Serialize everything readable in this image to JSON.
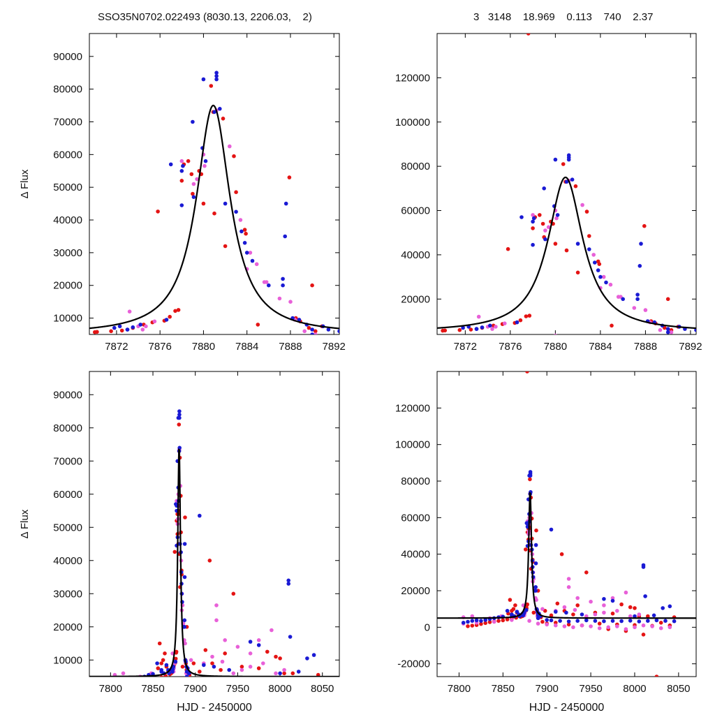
{
  "figure": {
    "title_left": "SSO35N0702.022493 (8030.13, 2206.03,    2)",
    "title_right": "3   3148    18.969    0.113    740    2.37",
    "ylabel": "Δ Flux",
    "xlabel": "HJD - 2450000",
    "colors": {
      "red": "#e41414",
      "blue": "#1a1ad4",
      "pink": "#e860d8",
      "fit": "#000000"
    }
  },
  "chart_data": [
    {
      "type": "scatter",
      "panel": "top-left",
      "xlim": [
        7869.5,
        7892.5
      ],
      "ylim": [
        5000,
        97000
      ],
      "xticks": [
        7872,
        7876,
        7880,
        7884,
        7888,
        7892
      ],
      "yticks": [
        10000,
        20000,
        30000,
        40000,
        50000,
        60000,
        70000,
        80000,
        90000
      ],
      "ylabel": "Δ Flux",
      "xlabel": ""
    },
    {
      "type": "scatter",
      "panel": "top-right",
      "xlim": [
        7869.5,
        7892.5
      ],
      "ylim": [
        4000,
        140000
      ],
      "xticks": [
        7872,
        7876,
        7880,
        7884,
        7888,
        7892
      ],
      "yticks": [
        20000,
        40000,
        60000,
        80000,
        100000,
        120000
      ],
      "ylabel": "",
      "xlabel": ""
    },
    {
      "type": "scatter",
      "panel": "bottom-left",
      "xlim": [
        7775,
        8070
      ],
      "ylim": [
        5000,
        97000
      ],
      "xticks": [
        7800,
        7850,
        7900,
        7950,
        8000,
        8050
      ],
      "yticks": [
        10000,
        20000,
        30000,
        40000,
        50000,
        60000,
        70000,
        80000,
        90000
      ],
      "ylabel": "Δ Flux",
      "xlabel": "HJD - 2450000"
    },
    {
      "type": "scatter",
      "panel": "bottom-right",
      "xlim": [
        7775,
        8070
      ],
      "ylim": [
        -27000,
        140000
      ],
      "xticks": [
        7800,
        7850,
        7900,
        7950,
        8000,
        8050
      ],
      "yticks": [
        -20000,
        0,
        20000,
        40000,
        60000,
        80000,
        100000,
        120000
      ],
      "ylabel": "",
      "xlabel": "HJD - 2450000"
    }
  ],
  "series": {
    "fit": {
      "name": "",
      "model": "lorentzian",
      "peak_x": 7880.9,
      "peak_y": 75000,
      "baseline": 5000,
      "half_width": 1.9
    },
    "red": [
      [
        7870.2,
        5800
      ],
      [
        7871.5,
        6000
      ],
      [
        7872.5,
        6200
      ],
      [
        7873.5,
        7000
      ],
      [
        7874.5,
        8000
      ],
      [
        7875.3,
        8700
      ],
      [
        7875.8,
        42600
      ],
      [
        7876.4,
        9200
      ],
      [
        7876.9,
        10400
      ],
      [
        7877.4,
        12200
      ],
      [
        7877.7,
        12500
      ],
      [
        7878.2,
        57000
      ],
      [
        7878.6,
        58000
      ],
      [
        7878.9,
        54000
      ],
      [
        7879.6,
        55000
      ],
      [
        7879.8,
        54000
      ],
      [
        7880.7,
        81000
      ],
      [
        7880.9,
        73000
      ],
      [
        7881.8,
        71000
      ],
      [
        7882.8,
        59500
      ],
      [
        7883.0,
        48500
      ],
      [
        7883.8,
        37000
      ],
      [
        7883.9,
        35800
      ],
      [
        7887.9,
        53000
      ],
      [
        7888.5,
        10000
      ],
      [
        7888.9,
        9000
      ],
      [
        7889.7,
        7000
      ],
      [
        7890.3,
        6000
      ],
      [
        7890.9,
        7500
      ],
      [
        7893.2,
        5500
      ],
      [
        7877.6,
        140000
      ],
      [
        7849,
        5800
      ],
      [
        7856,
        7500
      ],
      [
        7858,
        15000
      ],
      [
        7860,
        9000
      ],
      [
        7862,
        10000
      ],
      [
        7864,
        12000
      ],
      [
        7866,
        8000
      ],
      [
        7868,
        6500
      ],
      [
        7878,
        52000
      ],
      [
        7879,
        48000
      ],
      [
        7880,
        45000
      ],
      [
        7881,
        42000
      ],
      [
        7882,
        32000
      ],
      [
        7885,
        8000
      ],
      [
        7890,
        20000
      ],
      [
        7898,
        9000
      ],
      [
        7905,
        6500
      ],
      [
        7912,
        13000
      ],
      [
        7917,
        40000
      ],
      [
        7920,
        9000
      ],
      [
        7930,
        7000
      ],
      [
        7935,
        12000
      ],
      [
        7945,
        30000
      ],
      [
        7955,
        8000
      ],
      [
        7975,
        7500
      ],
      [
        7985,
        12500
      ],
      [
        7995,
        11000
      ],
      [
        8000,
        10500
      ],
      [
        8005,
        6000
      ],
      [
        8015,
        6000
      ],
      [
        8025,
        -27000
      ],
      [
        8045,
        5500
      ],
      [
        7810,
        600
      ],
      [
        7815,
        900
      ],
      [
        7820,
        1200
      ],
      [
        7825,
        1800
      ],
      [
        7830,
        2300
      ],
      [
        7835,
        2800
      ],
      [
        7840,
        3200
      ],
      [
        7845,
        3500
      ],
      [
        7850,
        3800
      ],
      [
        7855,
        4300
      ],
      [
        7860,
        4800
      ],
      [
        7865,
        5200
      ],
      [
        7870,
        5700
      ],
      [
        7895,
        3000
      ],
      [
        7900,
        2000
      ],
      [
        7910,
        2500
      ],
      [
        7925,
        1500
      ],
      [
        7940,
        1000
      ],
      [
        7960,
        2000
      ],
      [
        7980,
        1500
      ],
      [
        8000,
        1200
      ],
      [
        8020,
        800
      ],
      [
        8040,
        1000
      ],
      [
        8030,
        2500
      ],
      [
        8010,
        -4000
      ],
      [
        7990,
        -2000
      ],
      [
        7970,
        -1000
      ]
    ],
    "blue": [
      [
        7871.8,
        7000
      ],
      [
        7872.3,
        7500
      ],
      [
        7873.0,
        6500
      ],
      [
        7873.5,
        7200
      ],
      [
        7874.2,
        8000
      ],
      [
        7876.6,
        9500
      ],
      [
        7878.0,
        44500
      ],
      [
        7878.1,
        56500
      ],
      [
        7879.1,
        47000
      ],
      [
        7879.9,
        62000
      ],
      [
        7880.2,
        58000
      ],
      [
        7881.2,
        85000
      ],
      [
        7881.2,
        84000
      ],
      [
        7881.2,
        83000
      ],
      [
        7881.5,
        74000
      ],
      [
        7883.0,
        42500
      ],
      [
        7883.5,
        36500
      ],
      [
        7883.8,
        33000
      ],
      [
        7884.5,
        27500
      ],
      [
        7887.3,
        20000
      ],
      [
        7887.3,
        22000
      ],
      [
        7887.5,
        35000
      ],
      [
        7887.6,
        45000
      ],
      [
        7888.2,
        10000
      ],
      [
        7888.8,
        9500
      ],
      [
        7889.5,
        8000
      ],
      [
        7890.0,
        6500
      ],
      [
        7891.0,
        7500
      ],
      [
        7891.5,
        6500
      ],
      [
        7892.5,
        6000
      ],
      [
        7855,
        9000
      ],
      [
        7860,
        7000
      ],
      [
        7863,
        6000
      ],
      [
        7866,
        8500
      ],
      [
        7869,
        6000
      ],
      [
        7873,
        6500
      ],
      [
        7877,
        57000
      ],
      [
        7878,
        55000
      ],
      [
        7879,
        70000
      ],
      [
        7880,
        83000
      ],
      [
        7881,
        73000
      ],
      [
        7882,
        45000
      ],
      [
        7884,
        30000
      ],
      [
        7886,
        20000
      ],
      [
        7905,
        53500
      ],
      [
        7910,
        8500
      ],
      [
        7922,
        8000
      ],
      [
        7940,
        7000
      ],
      [
        7965,
        15500
      ],
      [
        7975,
        14500
      ],
      [
        8000,
        6000
      ],
      [
        8010,
        33000
      ],
      [
        8010,
        34000
      ],
      [
        8012,
        17000
      ],
      [
        8022,
        6500
      ],
      [
        8032,
        10500
      ],
      [
        8040,
        11500
      ],
      [
        7805,
        2500
      ],
      [
        7810,
        3000
      ],
      [
        7815,
        3500
      ],
      [
        7820,
        3800
      ],
      [
        7825,
        3500
      ],
      [
        7830,
        4000
      ],
      [
        7835,
        4500
      ],
      [
        7840,
        5000
      ],
      [
        7845,
        5500
      ],
      [
        7850,
        5800
      ],
      [
        7860,
        6500
      ],
      [
        7868,
        7000
      ],
      [
        7890,
        5000
      ],
      [
        7900,
        4000
      ],
      [
        7905,
        3800
      ],
      [
        7915,
        3500
      ],
      [
        7925,
        3200
      ],
      [
        7935,
        3500
      ],
      [
        7945,
        3800
      ],
      [
        7955,
        3500
      ],
      [
        7965,
        3300
      ],
      [
        7975,
        3500
      ],
      [
        7985,
        3400
      ],
      [
        7995,
        3600
      ],
      [
        8005,
        3200
      ],
      [
        8015,
        3500
      ],
      [
        8025,
        3800
      ],
      [
        8035,
        3500
      ],
      [
        8045,
        3300
      ]
    ],
    "pink": [
      [
        7873.2,
        12000
      ],
      [
        7874.4,
        6500
      ],
      [
        7874.7,
        7500
      ],
      [
        7875.5,
        9000
      ],
      [
        7879.1,
        51000
      ],
      [
        7879.4,
        52500
      ],
      [
        7880.1,
        56500
      ],
      [
        7881.2,
        73500
      ],
      [
        7882.4,
        62500
      ],
      [
        7883.4,
        40000
      ],
      [
        7884.3,
        30000
      ],
      [
        7884.9,
        26500
      ],
      [
        7885.6,
        21000
      ],
      [
        7885.8,
        21000
      ],
      [
        7887.0,
        16000
      ],
      [
        7888.4,
        9500
      ],
      [
        7889.3,
        6000
      ],
      [
        7890.3,
        5000
      ],
      [
        7805,
        5500
      ],
      [
        7815,
        6000
      ],
      [
        7835,
        5000
      ],
      [
        7848,
        6000
      ],
      [
        7874,
        7500
      ],
      [
        7878,
        58000
      ],
      [
        7880,
        60000
      ],
      [
        7884,
        25000
      ],
      [
        7888,
        15000
      ],
      [
        7895,
        10000
      ],
      [
        7910,
        9000
      ],
      [
        7920,
        11000
      ],
      [
        7925,
        26500
      ],
      [
        7932,
        9500
      ],
      [
        7945,
        6000
      ],
      [
        7955,
        7000
      ],
      [
        7965,
        8000
      ],
      [
        7975,
        16000
      ],
      [
        7990,
        19000
      ],
      [
        8005,
        7000
      ],
      [
        7805,
        2000
      ],
      [
        7820,
        2500
      ],
      [
        7840,
        3000
      ],
      [
        7860,
        4000
      ],
      [
        7880,
        3500
      ],
      [
        7890,
        2000
      ],
      [
        7900,
        1500
      ],
      [
        7910,
        1000
      ],
      [
        7920,
        500
      ],
      [
        7930,
        0
      ],
      [
        7940,
        1000
      ],
      [
        7950,
        500
      ],
      [
        7960,
        -500
      ],
      [
        7970,
        0
      ],
      [
        7980,
        500
      ],
      [
        7990,
        -1000
      ],
      [
        8000,
        0
      ],
      [
        8010,
        1000
      ],
      [
        8020,
        500
      ],
      [
        8030,
        -500
      ],
      [
        8040,
        0
      ],
      [
        7925,
        22000
      ],
      [
        7935,
        16000
      ],
      [
        7950,
        14000
      ],
      [
        7965,
        12000
      ],
      [
        7980,
        9000
      ],
      [
        7995,
        6000
      ]
    ]
  }
}
